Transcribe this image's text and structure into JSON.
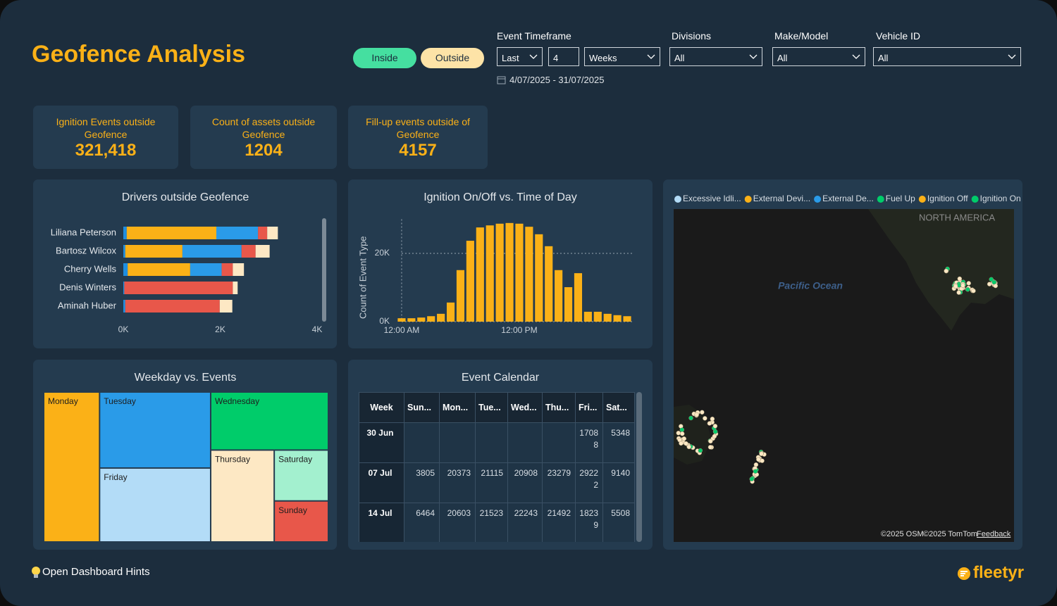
{
  "header": {
    "title": "Geofence Analysis"
  },
  "toggles": [
    "Inside",
    "Outside"
  ],
  "filters": {
    "timeframe": {
      "label": "Event Timeframe",
      "mode": "Last",
      "count": "4",
      "unit": "Weeks",
      "range": "4/07/2025 - 31/07/2025"
    },
    "divisions": {
      "label": "Divisions",
      "value": "All"
    },
    "make_model": {
      "label": "Make/Model",
      "value": "All"
    },
    "vehicle_id": {
      "label": "Vehicle ID",
      "value": "All"
    }
  },
  "kpis": [
    {
      "label": "Ignition Events outside Geofence",
      "value": "321,418"
    },
    {
      "label": "Count of assets outside Geofence",
      "value": "1204"
    },
    {
      "label": "Fill-up events outside of Geofence",
      "value": "4157"
    }
  ],
  "chart_data": [
    {
      "type": "bar",
      "orientation": "horizontal",
      "stacked": true,
      "title": "Drivers outside Geofence",
      "categories": [
        "Liliana Peterson",
        "Bartosz Wilcox",
        "Cherry Wells",
        "Denis Winters",
        "Aminah Huber"
      ],
      "series": [
        {
          "color": "#1f8ee0",
          "values": [
            70,
            40,
            90,
            20,
            40
          ]
        },
        {
          "color": "#fbb117",
          "values": [
            1850,
            1180,
            1290,
            0,
            0
          ]
        },
        {
          "color": "#2a9be8",
          "values": [
            860,
            1220,
            650,
            0,
            0
          ]
        },
        {
          "color": "#e8574a",
          "values": [
            190,
            290,
            230,
            2240,
            1950
          ]
        },
        {
          "color": "#fde8c4",
          "values": [
            220,
            290,
            230,
            100,
            260
          ]
        }
      ],
      "xlim": [
        0,
        4000
      ],
      "xticks": [
        {
          "value": 0,
          "label": "0K"
        },
        {
          "value": 2000,
          "label": "2K"
        },
        {
          "value": 4000,
          "label": "4K"
        }
      ]
    },
    {
      "type": "bar",
      "title": "Ignition On/Off vs. Time of Day",
      "y_label": "Count of Event Type",
      "categories": [
        "12:00 AM",
        null,
        null,
        null,
        null,
        null,
        null,
        null,
        null,
        null,
        null,
        null,
        "12:00 PM",
        null,
        null,
        null,
        null,
        null,
        null,
        null,
        null,
        null,
        null,
        null
      ],
      "values": [
        1000,
        1000,
        1200,
        1600,
        2300,
        5600,
        15100,
        23700,
        27600,
        28200,
        28700,
        28900,
        28700,
        27800,
        25600,
        22100,
        15100,
        10100,
        14200,
        2900,
        2900,
        2300,
        1900,
        1600
      ],
      "color": "#fbb117",
      "ylim": [
        0,
        30000
      ],
      "yticks": [
        {
          "value": 0,
          "label": "0K"
        },
        {
          "value": 20000,
          "label": "20K"
        }
      ],
      "grid": true
    },
    {
      "type": "treemap",
      "title": "Weekday vs. Events",
      "categories": [
        "Monday",
        "Tuesday",
        "Friday",
        "Wednesday",
        "Thursday",
        "Saturday",
        "Sunday"
      ],
      "values": [
        66000,
        66500,
        64700,
        53800,
        46000,
        21700,
        17500
      ],
      "colors": [
        "#fbb117",
        "#2a9be8",
        "#b3dcf7",
        "#00cc6a",
        "#fde8c4",
        "#a3f0cf",
        "#e8574a"
      ]
    }
  ],
  "calendar": {
    "title": "Event Calendar",
    "columns": [
      "Week",
      "Sun...",
      "Mon...",
      "Tue...",
      "Wed...",
      "Thu...",
      "Fri...",
      "Sat..."
    ],
    "rows": [
      [
        "30 Jun",
        null,
        null,
        null,
        null,
        null,
        17088,
        5348
      ],
      [
        "07 Jul",
        3805,
        20373,
        21115,
        20908,
        23279,
        29222,
        9140
      ],
      [
        "14 Jul",
        6464,
        20603,
        21523,
        22243,
        21492,
        18239,
        5508
      ]
    ]
  },
  "map": {
    "legend": [
      {
        "name": "Excessive Idli...",
        "color": "#b3dcf7"
      },
      {
        "name": "External Devi...",
        "color": "#fbb117"
      },
      {
        "name": "External De...",
        "color": "#2a9be8"
      },
      {
        "name": "Fuel Up",
        "color": "#00cc6a"
      },
      {
        "name": "Ignition Off",
        "color": "#fbb117"
      },
      {
        "name": "Ignition On",
        "color": "#00cc6a"
      }
    ],
    "labels": [
      "NORTH AMERICA",
      "Pacific Ocean"
    ],
    "attribution": [
      "©2025 OSM",
      "©2025 TomTom"
    ],
    "feedback": "Feedback"
  },
  "footer": {
    "hints": "Open Dashboard Hints",
    "brand": "fleetyr"
  }
}
